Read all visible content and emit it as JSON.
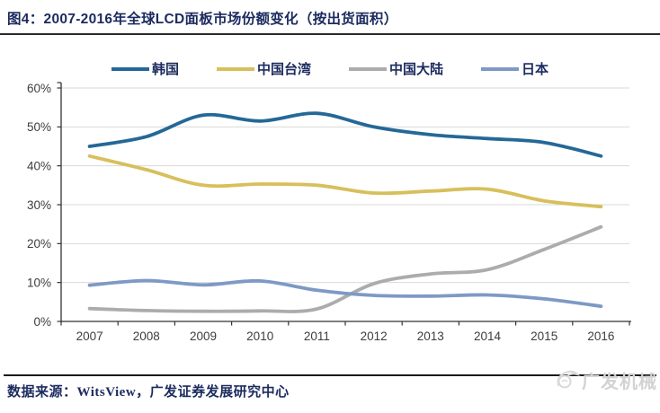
{
  "header": {
    "title": "图4：2007-2016年全球LCD面板市场份额变化（按出货面积）"
  },
  "chart_data": {
    "type": "line",
    "title": "2007-2016年全球LCD面板市场份额变化（按出货面积）",
    "categories": [
      "2007",
      "2008",
      "2009",
      "2010",
      "2011",
      "2012",
      "2013",
      "2014",
      "2015",
      "2016"
    ],
    "series": [
      {
        "name": "韩国",
        "color": "#246897",
        "values": [
          45.0,
          47.5,
          53.0,
          51.5,
          53.5,
          50.0,
          48.0,
          47.0,
          46.0,
          42.5
        ]
      },
      {
        "name": "中国台湾",
        "color": "#D7BF5C",
        "values": [
          42.5,
          39.0,
          35.0,
          35.3,
          35.0,
          33.0,
          33.5,
          34.0,
          31.0,
          29.5
        ]
      },
      {
        "name": "中国大陆",
        "color": "#ACACAC",
        "values": [
          3.3,
          2.8,
          2.6,
          2.7,
          3.2,
          9.7,
          12.2,
          13.3,
          18.5,
          24.3
        ]
      },
      {
        "name": "日本",
        "color": "#7E99C5",
        "values": [
          9.3,
          10.5,
          9.4,
          10.4,
          8.0,
          6.7,
          6.5,
          6.8,
          5.8,
          3.9
        ]
      }
    ],
    "ylim": [
      0,
      60
    ],
    "y_tick_step": 10,
    "y_tick_labels": [
      "0%",
      "10%",
      "20%",
      "30%",
      "40%",
      "50%",
      "60%"
    ],
    "xlabel": "",
    "ylabel": "",
    "grid": "horizontal",
    "legend_position": "top",
    "colors": {
      "gridline": "#D9D9D9",
      "axis": "#333333",
      "tick_label": "#3D3D3D"
    }
  },
  "footer": {
    "source": "数据来源：WitsView，广发证券发展研究中心",
    "watermark": "广发机械"
  }
}
